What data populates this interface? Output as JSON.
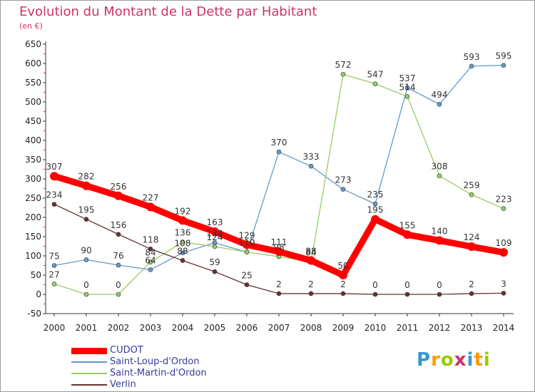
{
  "chart_data": {
    "type": "line",
    "title": "Evolution du Montant de la Dette par Habitant",
    "subtitle": "(en €)",
    "x": [
      "2000",
      "2001",
      "2002",
      "2003",
      "2004",
      "2005",
      "2006",
      "2007",
      "2008",
      "2009",
      "2010",
      "2011",
      "2012",
      "2013",
      "2014"
    ],
    "ylim": [
      -50,
      650
    ],
    "yticks": [
      -50,
      0,
      50,
      100,
      150,
      200,
      250,
      300,
      350,
      400,
      450,
      500,
      550,
      600,
      650
    ],
    "grid": false,
    "legend_position": "bottom-left",
    "series": [
      {
        "name": "CUDOT",
        "color": "#ff0000",
        "values": [
          307,
          282,
          256,
          227,
          192,
          163,
          129,
          111,
          88,
          50,
          195,
          155,
          140,
          124,
          109
        ]
      },
      {
        "name": "Saint-Loup-d'Ordon",
        "color": "#6699cc",
        "values": [
          75,
          90,
          76,
          64,
          108,
          134,
          110,
          370,
          333,
          273,
          235,
          537,
          494,
          593,
          595
        ]
      },
      {
        "name": "Saint-Martin-d'Ordon",
        "color": "#99cc66",
        "values": [
          27,
          0,
          0,
          84,
          136,
          124,
          110,
          98,
          84,
          572,
          547,
          514,
          308,
          259,
          223
        ]
      },
      {
        "name": "Verlin",
        "color": "#663333",
        "values": [
          234,
          195,
          156,
          118,
          88,
          59,
          25,
          2,
          2,
          2,
          0,
          0,
          0,
          2,
          3
        ]
      }
    ]
  },
  "logo": {
    "text": "Proxiti",
    "colors": [
      "#3399cc",
      "#ff9900",
      "#99cc00",
      "#cc3366"
    ]
  }
}
